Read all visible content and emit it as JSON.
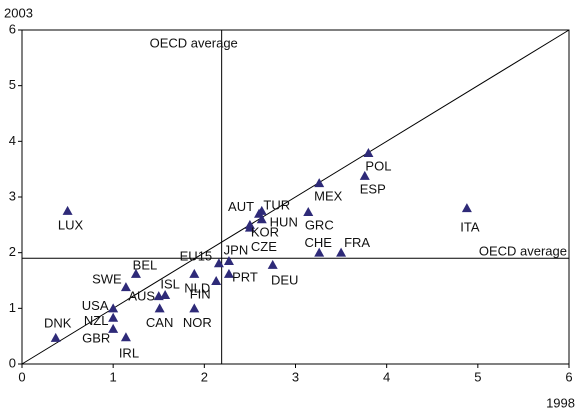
{
  "chart_data": {
    "type": "scatter",
    "xlabel": "1998",
    "ylabel": "2003",
    "xlim": [
      0,
      6
    ],
    "ylim": [
      0,
      6
    ],
    "xticks": [
      0,
      1,
      2,
      3,
      4,
      5,
      6
    ],
    "yticks": [
      0,
      1,
      2,
      3,
      4,
      5,
      6
    ],
    "diagonal": true,
    "reference_lines": [
      {
        "label": "OECD average",
        "axis": "x",
        "value": 2.19
      },
      {
        "label": "OECD average",
        "axis": "y",
        "value": 1.9
      }
    ],
    "series": [
      {
        "color": "#2e2a78",
        "labels": [
          "LUX",
          "DNK",
          "USA",
          "NZL",
          "GBR",
          "IRL",
          "SWE",
          "BEL",
          "AUS",
          "ISL",
          "CAN",
          "NLD",
          "NOR",
          "FIN",
          "EU15",
          "JPN",
          "PRT",
          "DEU",
          "CZE",
          "KOR",
          "HUN",
          "AUT",
          "TUR",
          "GRC",
          "MEX",
          "POL",
          "ESP",
          "ITA",
          "CHE",
          "FRA"
        ],
        "x": [
          0.5,
          0.37,
          1.0,
          1.0,
          1.0,
          1.14,
          1.14,
          1.25,
          1.5,
          1.57,
          1.51,
          1.89,
          1.89,
          2.13,
          2.16,
          2.27,
          2.27,
          2.75,
          2.5,
          2.5,
          2.63,
          2.6,
          2.63,
          3.14,
          3.26,
          3.8,
          3.76,
          4.88,
          3.26,
          3.5
        ],
        "values": [
          2.75,
          0.47,
          1.0,
          0.83,
          0.63,
          0.48,
          1.38,
          1.62,
          1.22,
          1.24,
          1.0,
          1.62,
          1.0,
          1.49,
          1.81,
          1.85,
          1.62,
          1.78,
          2.45,
          2.5,
          2.6,
          2.7,
          2.75,
          2.73,
          3.25,
          3.79,
          3.38,
          2.8,
          2.0,
          2.0
        ]
      }
    ]
  }
}
